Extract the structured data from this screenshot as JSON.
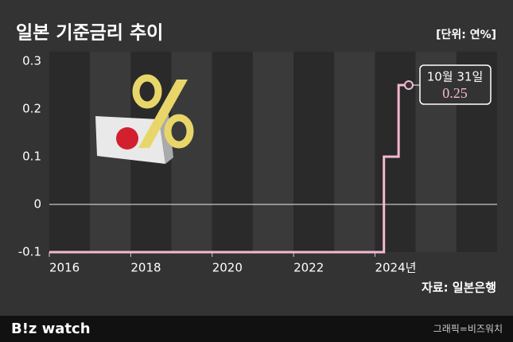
{
  "chart_data": {
    "type": "line",
    "title": "일본 기준금리 추이",
    "unit": "[단위: 연%]",
    "series": [
      {
        "name": "일본 기준금리",
        "color": "#f5b8d2",
        "x": [
          2016.0,
          2024.22,
          2024.22,
          2024.58,
          2024.58,
          2024.83
        ],
        "values": [
          -0.1,
          -0.1,
          0.1,
          0.1,
          0.25,
          0.25
        ]
      }
    ],
    "annotation": "10월 31일",
    "xlim": [
      2016,
      2027
    ],
    "xticks": [
      2016,
      2018,
      2020,
      2022,
      {
        "value": 2024,
        "label": "2024년"
      }
    ],
    "ylim": [
      -0.1,
      0.3
    ],
    "yticks": [
      -0.1,
      0,
      0.1,
      0.2,
      0.3
    ],
    "grid": false,
    "zero_line": true,
    "source": "자료: 일본은행"
  },
  "footer": {
    "logo": "B!z watch",
    "credit": "그래픽=비즈워치"
  }
}
